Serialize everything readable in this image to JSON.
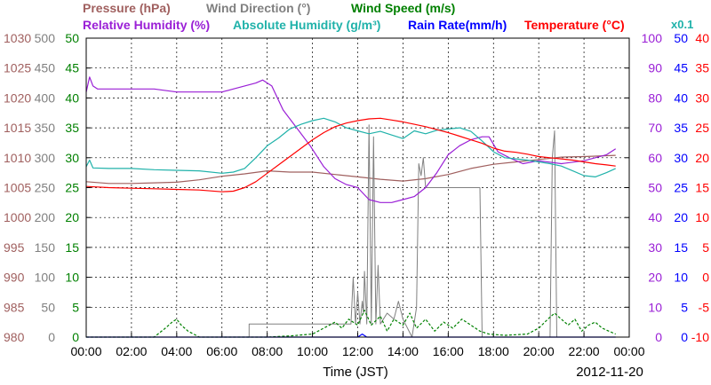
{
  "chart_data": {
    "type": "line",
    "legend": {
      "row1": [
        {
          "key": "pressure",
          "label": "Pressure (hPa)",
          "color": "#a0605f"
        },
        {
          "key": "wind_direction",
          "label": "Wind Direction (°)",
          "color": "#808080"
        },
        {
          "key": "wind_speed",
          "label": "Wind Speed (m/s)",
          "color": "#008000"
        }
      ],
      "row2": [
        {
          "key": "relative_humidity",
          "label": "Relative Humidity (%)",
          "color": "#9a1fd6"
        },
        {
          "key": "absolute_humidity",
          "label": "Absolute Humidity (g/m³)",
          "color": "#20b2aa"
        },
        {
          "key": "rain_rate",
          "label": "Rain Rate(mm/h)",
          "color": "#0000ff"
        },
        {
          "key": "temperature",
          "label": "Temperature (°C)",
          "color": "#ff0000"
        }
      ],
      "abs_humidity_scale_note": "x0.1"
    },
    "x_axis": {
      "label": "Time (JST)",
      "date": "2012-11-20",
      "ticks": [
        "00:00",
        "02:00",
        "04:00",
        "06:00",
        "08:00",
        "10:00",
        "12:00",
        "14:00",
        "16:00",
        "18:00",
        "20:00",
        "22:00",
        "00:00"
      ],
      "range_hours": [
        0,
        24
      ]
    },
    "y_axes": [
      {
        "key": "pressure",
        "side": "left",
        "color": "#a0605f",
        "range": [
          980,
          1030
        ],
        "ticks": [
          "980",
          "985",
          "990",
          "995",
          "1000",
          "1005",
          "1010",
          "1015",
          "1020",
          "1025",
          "1030"
        ]
      },
      {
        "key": "wind_direction",
        "side": "left",
        "color": "#808080",
        "range": [
          0,
          500
        ],
        "ticks": [
          "0",
          "50",
          "100",
          "150",
          "200",
          "250",
          "300",
          "350",
          "400",
          "450",
          "500"
        ]
      },
      {
        "key": "wind_speed",
        "side": "left",
        "color": "#008000",
        "range": [
          0,
          50
        ],
        "ticks": [
          "0",
          "5",
          "10",
          "15",
          "20",
          "25",
          "30",
          "35",
          "40",
          "45",
          "50"
        ]
      },
      {
        "key": "relative_humidity",
        "side": "right",
        "color": "#9a1fd6",
        "range": [
          0,
          100
        ],
        "ticks": [
          "0",
          "10",
          "20",
          "30",
          "40",
          "50",
          "60",
          "70",
          "80",
          "90",
          "100"
        ]
      },
      {
        "key": "rain_rate",
        "side": "right",
        "color": "#0000ff",
        "range": [
          0,
          50
        ],
        "ticks": [
          "0",
          "5",
          "10",
          "15",
          "20",
          "25",
          "30",
          "35",
          "40",
          "45",
          "50"
        ]
      },
      {
        "key": "temperature",
        "side": "right",
        "color": "#ff0000",
        "range": [
          -10,
          40
        ],
        "ticks": [
          "-10",
          "-5",
          "0",
          "5",
          "10",
          "15",
          "20",
          "25",
          "30",
          "35",
          "40"
        ]
      }
    ],
    "grid": true,
    "series": [
      {
        "name": "Pressure (hPa)",
        "axis": "pressure",
        "color": "#a0605f",
        "x": [
          0,
          1,
          2,
          3,
          4,
          5,
          6,
          7,
          8,
          9,
          10,
          11,
          12,
          13,
          14,
          15,
          16,
          17,
          18,
          19,
          20,
          21,
          22,
          23.4
        ],
        "y": [
          1006.0,
          1005.7,
          1005.7,
          1005.8,
          1005.9,
          1006.3,
          1006.9,
          1007.3,
          1007.8,
          1007.6,
          1007.6,
          1007.2,
          1006.8,
          1006.4,
          1006.1,
          1006.5,
          1007.2,
          1008.2,
          1008.9,
          1009.3,
          1009.7,
          1010.1,
          1010.2,
          1010.4
        ]
      },
      {
        "name": "Wind Direction (°)",
        "axis": "wind_direction",
        "color": "#808080",
        "x": [
          0,
          7.2,
          7.2,
          11.7,
          11.8,
          11.9,
          12.0,
          12.1,
          12.2,
          12.25,
          12.3,
          12.4,
          12.5,
          12.6,
          12.7,
          12.8,
          12.9,
          13.0,
          13.3,
          13.6,
          13.8,
          14.0,
          14.4,
          14.6,
          14.7,
          14.8,
          14.9,
          15.0,
          15.3,
          17.4,
          17.5,
          17.6,
          17.7,
          20.5,
          20.6,
          20.7,
          20.8,
          23.4
        ],
        "y": [
          0,
          0,
          22,
          22,
          100,
          22,
          75,
          22,
          60,
          40,
          110,
          22,
          355,
          22,
          335,
          22,
          120,
          22,
          40,
          30,
          60,
          30,
          0,
          50,
          290,
          270,
          300,
          250,
          250,
          250,
          0,
          0,
          0,
          0,
          300,
          345,
          0,
          0
        ]
      },
      {
        "name": "Wind Speed (m/s)",
        "axis": "wind_speed",
        "color": "#008000",
        "dashed": true,
        "x": [
          0,
          1,
          2,
          3,
          3.5,
          3.8,
          4.0,
          4.2,
          4.5,
          5,
          6,
          7,
          8,
          9,
          10,
          10.5,
          11,
          11.3,
          11.6,
          12.0,
          12.3,
          12.6,
          13.0,
          13.3,
          13.6,
          14.0,
          14.3,
          14.6,
          15.0,
          15.4,
          15.8,
          16.2,
          16.6,
          17.0,
          17.4,
          17.8,
          18.5,
          19.5,
          20.0,
          20.4,
          20.7,
          21.0,
          21.3,
          21.6,
          21.9,
          22.2,
          22.5,
          22.8,
          23.1,
          23.4
        ],
        "y": [
          0,
          0,
          0,
          0,
          1.5,
          2.5,
          3.0,
          2.0,
          1.0,
          0,
          0,
          0,
          0,
          0.2,
          0.5,
          1.5,
          2.5,
          1.5,
          3.0,
          2.0,
          4.5,
          2.0,
          3.5,
          1.0,
          3.0,
          2.0,
          4.0,
          1.5,
          3.0,
          1.0,
          2.5,
          1.5,
          3.0,
          2.0,
          1.0,
          0.5,
          0.3,
          0.5,
          1.5,
          3.0,
          4.0,
          3.0,
          2.0,
          3.0,
          1.0,
          2.0,
          2.5,
          1.5,
          1.0,
          0.5
        ]
      },
      {
        "name": "Relative Humidity (%)",
        "axis": "relative_humidity",
        "color": "#9a1fd6",
        "x": [
          0,
          0.15,
          0.3,
          0.5,
          1,
          2,
          3,
          4,
          5,
          6,
          6.5,
          7,
          7.5,
          7.8,
          8.2,
          8.7,
          9.3,
          9.9,
          10.5,
          11.0,
          11.5,
          12,
          12.5,
          13,
          13.5,
          14,
          14.5,
          15,
          15.5,
          16,
          16.5,
          17,
          17.5,
          17.8,
          18.2,
          18.7,
          19.3,
          20,
          21,
          22,
          22.5,
          23,
          23.4
        ],
        "y": [
          82,
          87,
          84,
          83,
          83,
          83,
          83,
          82,
          82,
          82,
          83,
          84,
          85,
          86,
          84,
          76,
          70,
          64,
          57,
          53,
          51,
          50,
          46,
          45,
          45,
          46,
          47,
          50,
          55,
          61,
          64,
          66,
          67,
          67,
          62,
          60,
          58,
          59,
          58,
          59,
          60,
          61,
          63
        ]
      },
      {
        "name": "Absolute Humidity (g/m³)",
        "axis": "pressure",
        "color": "#20b2aa",
        "scale": "x0.1",
        "x": [
          0,
          0.15,
          0.3,
          1,
          2,
          3,
          4,
          5,
          6,
          6.5,
          7,
          7.5,
          8,
          8.5,
          9,
          9.5,
          10,
          10.5,
          11,
          11.5,
          12,
          12.5,
          13,
          13.5,
          14,
          14.5,
          15,
          15.5,
          16,
          16.5,
          17,
          17.5,
          18,
          18.5,
          19,
          19.5,
          20,
          20.5,
          21,
          21.5,
          22,
          22.5,
          23,
          23.4
        ],
        "y": [
          1008.5,
          1009.6,
          1008.3,
          1008.2,
          1008.2,
          1008.0,
          1007.9,
          1007.8,
          1007.4,
          1007.6,
          1008.2,
          1010.0,
          1012.0,
          1013.3,
          1014.8,
          1015.6,
          1016.2,
          1016.6,
          1016.0,
          1015.0,
          1014.5,
          1014.0,
          1014.4,
          1013.8,
          1013.2,
          1014.5,
          1014.0,
          1014.6,
          1014.8,
          1015.0,
          1014.4,
          1012.8,
          1011.0,
          1010.0,
          1009.8,
          1009.6,
          1009.3,
          1009.0,
          1008.6,
          1007.8,
          1007.0,
          1006.8,
          1007.5,
          1008.2
        ]
      },
      {
        "name": "Rain Rate(mm/h)",
        "axis": "rain_rate",
        "color": "#0000ff",
        "x": [
          0,
          12.0,
          12.2,
          12.4,
          12.8,
          23.4
        ],
        "y": [
          0,
          0,
          0.5,
          0,
          0,
          0
        ]
      },
      {
        "name": "Temperature (°C)",
        "axis": "temperature",
        "color": "#ff0000",
        "x": [
          0,
          0.5,
          1,
          2,
          3,
          4,
          5,
          6,
          6.5,
          7,
          7.5,
          8,
          8.5,
          9,
          9.5,
          10,
          10.5,
          11,
          11.5,
          12,
          12.5,
          13,
          13.5,
          14,
          14.5,
          15,
          15.5,
          16,
          16.5,
          17,
          17.5,
          18,
          18.5,
          19,
          19.5,
          20,
          20.5,
          21,
          21.5,
          22,
          22.5,
          23,
          23.4
        ],
        "y": [
          15.2,
          15.1,
          15.0,
          14.9,
          14.8,
          14.7,
          14.6,
          14.3,
          14.4,
          15.0,
          16.0,
          17.4,
          18.8,
          20.2,
          21.6,
          23.0,
          24.2,
          25.2,
          25.8,
          26.2,
          26.5,
          26.6,
          26.3,
          26.0,
          25.6,
          25.2,
          24.7,
          24.2,
          23.6,
          23.0,
          22.4,
          21.6,
          21.1,
          20.9,
          20.6,
          20.2,
          20.0,
          19.8,
          19.6,
          19.3,
          19.0,
          18.8,
          18.6
        ]
      }
    ]
  }
}
